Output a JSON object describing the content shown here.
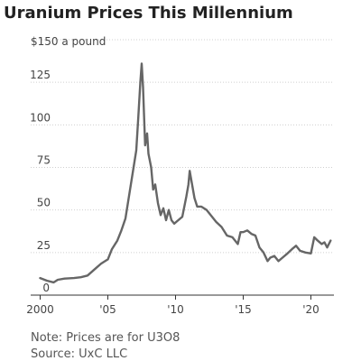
{
  "chart_data": {
    "type": "line",
    "title": "Uranium Prices This Millennium",
    "y_unit_label": "$150 a pound",
    "xlabel": "",
    "ylabel": "",
    "xlim": [
      1999.3,
      2021.7
    ],
    "ylim": [
      0,
      150
    ],
    "y_ticks": [
      {
        "value": 0,
        "label": "0"
      },
      {
        "value": 25,
        "label": "25"
      },
      {
        "value": 50,
        "label": "50"
      },
      {
        "value": 75,
        "label": "75"
      },
      {
        "value": 100,
        "label": "100"
      },
      {
        "value": 125,
        "label": "125"
      }
    ],
    "x_ticks": [
      {
        "value": 2000,
        "label": "2000"
      },
      {
        "value": 2005,
        "label": "'05"
      },
      {
        "value": 2010,
        "label": "'10"
      },
      {
        "value": 2015,
        "label": "'15"
      },
      {
        "value": 2020,
        "label": "'20"
      }
    ],
    "grid": true,
    "series": [
      {
        "color": "#666666",
        "points": [
          [
            2000.0,
            10
          ],
          [
            2000.5,
            8.5
          ],
          [
            2001.0,
            7.5
          ],
          [
            2001.3,
            9
          ],
          [
            2001.8,
            9.7
          ],
          [
            2002.5,
            10
          ],
          [
            2003.0,
            10.5
          ],
          [
            2003.5,
            11.5
          ],
          [
            2004.0,
            15
          ],
          [
            2004.5,
            18.5
          ],
          [
            2005.0,
            21
          ],
          [
            2005.3,
            27
          ],
          [
            2005.7,
            32
          ],
          [
            2006.0,
            38
          ],
          [
            2006.3,
            45
          ],
          [
            2006.6,
            60
          ],
          [
            2006.9,
            75
          ],
          [
            2007.1,
            85
          ],
          [
            2007.25,
            105
          ],
          [
            2007.4,
            125
          ],
          [
            2007.5,
            136
          ],
          [
            2007.6,
            122
          ],
          [
            2007.75,
            88
          ],
          [
            2007.9,
            95
          ],
          [
            2008.0,
            83
          ],
          [
            2008.2,
            75
          ],
          [
            2008.35,
            62
          ],
          [
            2008.5,
            65
          ],
          [
            2008.7,
            54
          ],
          [
            2008.9,
            47
          ],
          [
            2009.1,
            51
          ],
          [
            2009.3,
            44
          ],
          [
            2009.5,
            50
          ],
          [
            2009.7,
            44
          ],
          [
            2009.9,
            42
          ],
          [
            2010.2,
            44
          ],
          [
            2010.5,
            46
          ],
          [
            2010.8,
            58
          ],
          [
            2010.95,
            65
          ],
          [
            2011.05,
            73
          ],
          [
            2011.2,
            66
          ],
          [
            2011.4,
            57
          ],
          [
            2011.6,
            52
          ],
          [
            2011.9,
            52
          ],
          [
            2012.3,
            50
          ],
          [
            2012.7,
            46
          ],
          [
            2013.0,
            43
          ],
          [
            2013.4,
            40
          ],
          [
            2013.8,
            35
          ],
          [
            2014.2,
            34
          ],
          [
            2014.6,
            30
          ],
          [
            2014.8,
            37
          ],
          [
            2015.0,
            37
          ],
          [
            2015.3,
            38
          ],
          [
            2015.6,
            36
          ],
          [
            2015.9,
            35
          ],
          [
            2016.2,
            28
          ],
          [
            2016.5,
            25
          ],
          [
            2016.8,
            20
          ],
          [
            2017.0,
            22
          ],
          [
            2017.3,
            23
          ],
          [
            2017.6,
            20
          ],
          [
            2017.9,
            22
          ],
          [
            2018.2,
            24
          ],
          [
            2018.6,
            27
          ],
          [
            2018.9,
            29
          ],
          [
            2019.2,
            26
          ],
          [
            2019.6,
            25
          ],
          [
            2020.0,
            24.5
          ],
          [
            2020.25,
            34
          ],
          [
            2020.5,
            32
          ],
          [
            2020.8,
            30
          ],
          [
            2021.0,
            31
          ],
          [
            2021.2,
            28
          ],
          [
            2021.45,
            32
          ]
        ]
      }
    ],
    "notes": [
      "Note: Prices are for U3O8",
      "Source: UxC LLC"
    ]
  },
  "colors": {
    "line": "#666666",
    "grid": "#cfcfcf",
    "axis": "#333333"
  }
}
